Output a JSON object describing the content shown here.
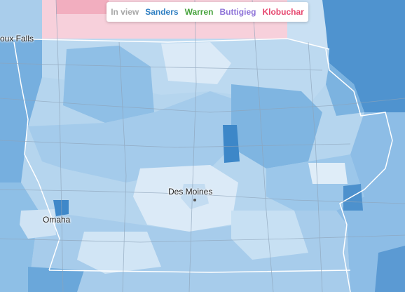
{
  "legend": {
    "items": [
      {
        "label": "In view",
        "color": "#a8a8a8"
      },
      {
        "label": "Sanders",
        "color": "#2f7fc2"
      },
      {
        "label": "Warren",
        "color": "#47a33d"
      },
      {
        "label": "Buttigieg",
        "color": "#8e73d8"
      },
      {
        "label": "Klobuchar",
        "color": "#e6466e"
      }
    ]
  },
  "cities": {
    "sioux_falls": "oux Falls",
    "des_moines": "Des Moines",
    "omaha": "Omaha"
  },
  "colors": {
    "sanders_light": "#d8e9f6",
    "sanders_mid": "#a9cdeb",
    "sanders_strong": "#6eaadc",
    "sanders_dark": "#3d87c8",
    "klobuchar_light": "#f8d3dd",
    "road": "#8fa3b8",
    "border": "#ffffff"
  }
}
